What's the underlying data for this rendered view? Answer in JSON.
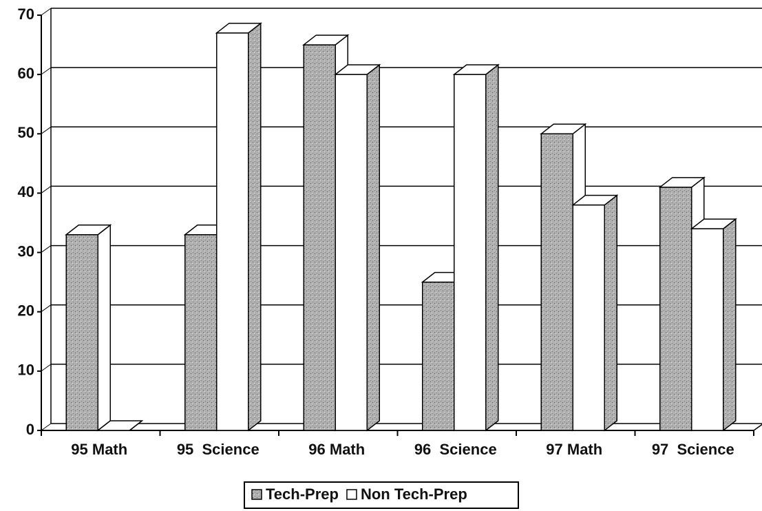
{
  "chart_data": {
    "type": "bar3d",
    "categories": [
      "95 Math",
      "95  Science",
      "96 Math",
      "96  Science",
      "97 Math",
      "97  Science"
    ],
    "series": [
      {
        "name": "Tech-Prep",
        "color": "#a8a8a8",
        "values": [
          33,
          33,
          65,
          25,
          50,
          41
        ]
      },
      {
        "name": "Non Tech-Prep",
        "color": "#ffffff",
        "values": [
          0,
          67,
          60,
          60,
          38,
          34
        ]
      }
    ],
    "ylim": [
      0,
      70
    ],
    "yticks": [
      0,
      10,
      20,
      30,
      40,
      50,
      60,
      70
    ],
    "grid": true,
    "legend": "bottom"
  }
}
